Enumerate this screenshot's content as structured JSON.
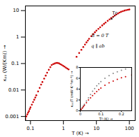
{
  "chart_data": [
    {
      "type": "scatter",
      "xlabel": "T (K)",
      "ylabel": "κₚₚ (W/(Km))",
      "log": true,
      "xlim": [
        0.07,
        150
      ],
      "ylim": [
        0.0007,
        15
      ],
      "xticks": [
        0.1,
        1,
        10,
        100
      ],
      "yticks": [
        0.001,
        0.01,
        0.1,
        1,
        10
      ],
      "marker": "circle",
      "series": [
        {
          "color": "#cc0000",
          "x": [
            0.07,
            0.075,
            0.08,
            0.085,
            0.09,
            0.095,
            0.1,
            0.11,
            0.12,
            0.13,
            0.14,
            0.15,
            0.17,
            0.19,
            0.21,
            0.23,
            0.26,
            0.29,
            0.32,
            0.36,
            0.4,
            0.44,
            0.49,
            0.54,
            0.6,
            0.66,
            0.73,
            0.8,
            0.88,
            0.97,
            1.07,
            1.18,
            1.3,
            1.43
          ],
          "values": [
            0.0008,
            0.001,
            0.0012,
            0.0014,
            0.0016,
            0.0019,
            0.0022,
            0.0028,
            0.0035,
            0.0043,
            0.0052,
            0.0063,
            0.0088,
            0.012,
            0.016,
            0.02,
            0.027,
            0.035,
            0.045,
            0.058,
            0.073,
            0.088,
            0.095,
            0.1,
            0.105,
            0.105,
            0.102,
            0.095,
            0.089,
            0.083,
            0.077,
            0.07,
            0.065,
            0.06
          ]
        },
        {
          "color": "#cc0000",
          "x": [
            2.5,
            3.0,
            3.5,
            4.0,
            4.5,
            5.0,
            5.5,
            6.0,
            7.0,
            8.0,
            9.0,
            10.0,
            11.5,
            13.0,
            15.0,
            17.0,
            19.0,
            22.0,
            25.0,
            28.0,
            32.0,
            36.0,
            40.0,
            45.0,
            50.0,
            56.0,
            63.0,
            71.0,
            80.0,
            90.0,
            100.0
          ],
          "values": [
            0.18,
            0.25,
            0.33,
            0.42,
            0.52,
            0.63,
            0.74,
            0.86,
            1.08,
            1.3,
            1.52,
            1.75,
            2.05,
            2.35,
            2.75,
            3.15,
            3.55,
            4.1,
            4.65,
            5.2,
            5.85,
            6.5,
            7.1,
            7.8,
            8.4,
            9.0,
            9.55,
            10.0,
            10.4,
            10.7,
            11.0
          ]
        }
      ],
      "annotations": [
        {
          "text": "B = 0 T"
        },
        {
          "text": "q ∥ ab"
        },
        {
          "text": "Tᴄ",
          "x": 28.0,
          "y": 4.65
        }
      ]
    },
    {
      "type": "scatter",
      "xlabel": "T² (K)",
      "ylabel": "κₚₚ/T (mW·K⁻²m⁻¹)",
      "x": [
        0.0,
        0.005,
        0.01,
        0.015,
        0.02,
        0.03,
        0.04,
        0.05,
        0.06,
        0.07,
        0.08,
        0.09,
        0.1,
        0.12,
        0.14,
        0.16,
        0.18,
        0.2,
        0.22,
        0.25
      ],
      "xlim": [
        0,
        0.25
      ],
      "ylim": [
        0,
        8
      ],
      "xticks": [
        0,
        0.1,
        0.2
      ],
      "yticks": [
        0,
        2,
        4,
        6,
        8
      ],
      "marker": "circle",
      "series": [
        {
          "color": "#888888",
          "values": [
            0.0,
            0.3,
            0.6,
            0.9,
            1.2,
            1.8,
            2.4,
            3.0,
            3.6,
            4.1,
            4.6,
            5.0,
            5.4,
            6.0,
            6.5,
            6.9,
            7.2,
            7.5,
            7.7,
            8.0
          ]
        },
        {
          "color": "#cc0000",
          "values": [
            0.0,
            0.25,
            0.5,
            0.75,
            1.0,
            1.5,
            2.0,
            2.4,
            2.8,
            3.2,
            3.55,
            3.9,
            4.2,
            4.7,
            5.15,
            5.5,
            5.8,
            6.1,
            6.3,
            6.6
          ]
        }
      ]
    }
  ]
}
